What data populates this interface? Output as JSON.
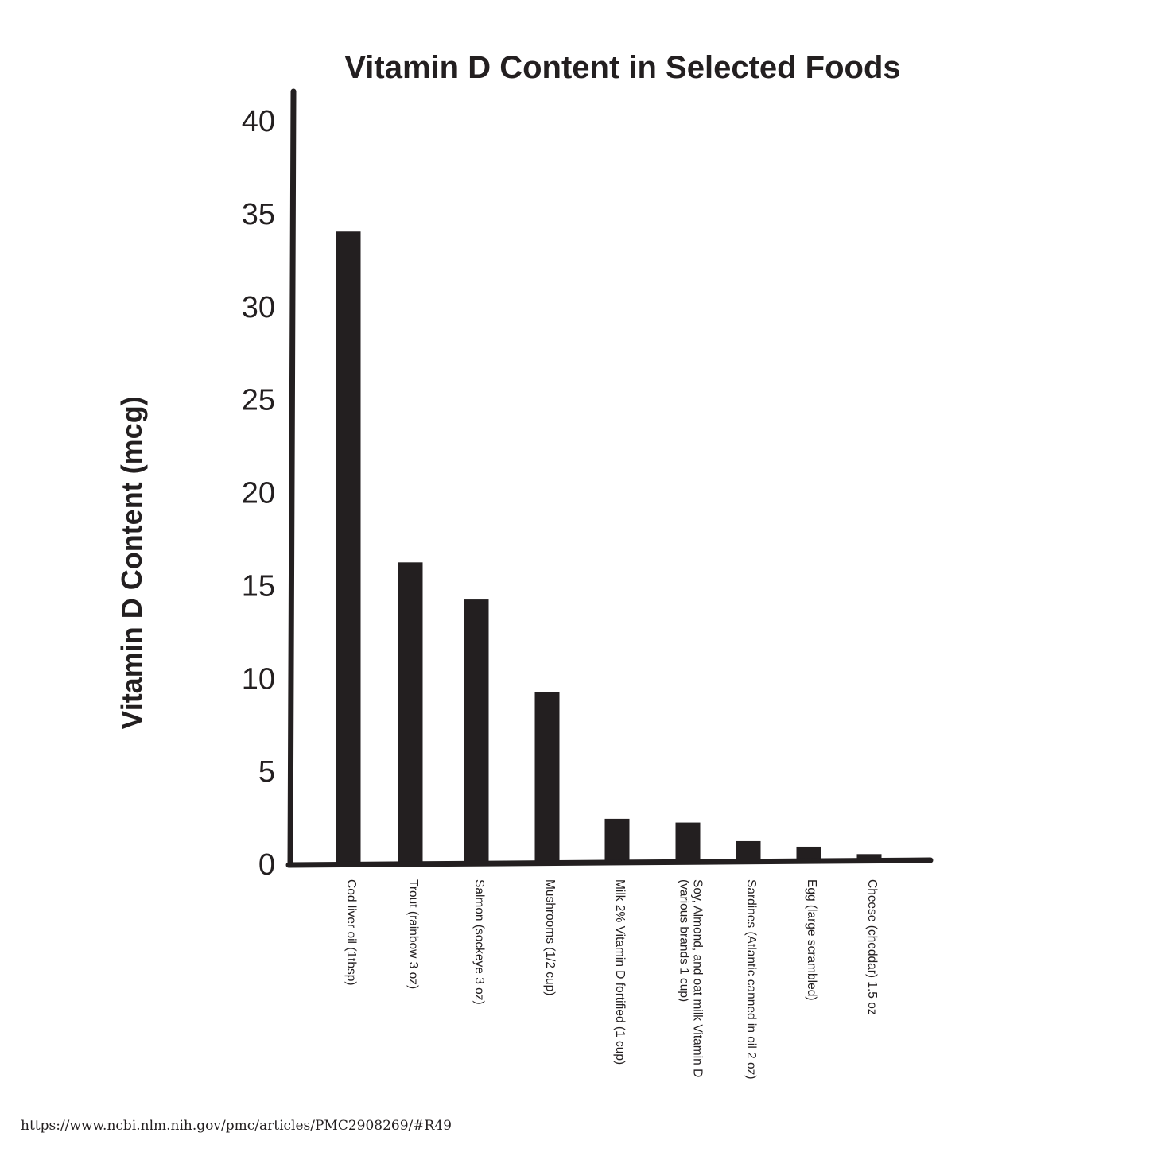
{
  "chart_data": {
    "type": "bar",
    "title": "Vitamin D Content in Selected Foods",
    "xlabel": "",
    "ylabel": "Vitamin D Content (mcg)",
    "ylim": [
      0,
      40
    ],
    "yticks": [
      "0",
      "5",
      "10",
      "15",
      "20",
      "25",
      "30",
      "35",
      "40"
    ],
    "grid": false,
    "legend": "none",
    "bar_color": "#231f20",
    "axis_color": "#231f20",
    "categories": [
      [
        "Cod liver oil (1tbsp)"
      ],
      [
        "Trout (rainbow 3 oz)"
      ],
      [
        "Salmon (sockeye 3 oz)"
      ],
      [
        "Mushrooms (1/2 cup)"
      ],
      [
        "Milk 2% Vitamin D fortified (1 cup)"
      ],
      [
        "Soy, Almond, and oat milk Vitamin D",
        "(various brands 1 cup)"
      ],
      [
        "Sardines (Atlantic canned in oil 2 oz)"
      ],
      [
        "Egg (large scrambled)"
      ],
      [
        "Cheese (cheddar) 1.5 oz"
      ]
    ],
    "values": [
      34,
      16.2,
      14.2,
      9.2,
      2.4,
      2.2,
      1.2,
      0.9,
      0.5
    ]
  },
  "source": "https://www.ncbi.nlm.nih.gov/pmc/articles/PMC2908269/#R49"
}
